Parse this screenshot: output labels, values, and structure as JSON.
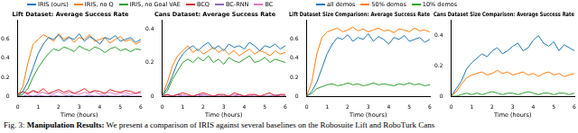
{
  "chart_data": [
    {
      "type": "line",
      "title": "Lift Dataset: Average Success Rate",
      "x_label": "Time (hours)",
      "legend": "top",
      "x": [
        0,
        0.25,
        0.5,
        0.75,
        1,
        1.25,
        1.5,
        1.75,
        2,
        2.25,
        2.5,
        2.75,
        3,
        3.25,
        3.5,
        3.75,
        4,
        4.25,
        4.5,
        4.75,
        5,
        5.25,
        5.5,
        5.75,
        6
      ],
      "xlim": [
        0,
        6
      ],
      "xticks": [
        0,
        1,
        2,
        3,
        4,
        5,
        6
      ],
      "ylim": [
        0,
        0.8
      ],
      "yticks": [
        0,
        0.2,
        0.4,
        0.6
      ],
      "grid": false,
      "series": [
        {
          "name": "IRIS (ours)",
          "color": "#1f77b4",
          "values": [
            0,
            0.05,
            0.15,
            0.3,
            0.45,
            0.55,
            0.62,
            0.6,
            0.65,
            0.58,
            0.62,
            0.6,
            0.66,
            0.58,
            0.63,
            0.6,
            0.55,
            0.62,
            0.6,
            0.64,
            0.58,
            0.6,
            0.62,
            0.57,
            0.6
          ]
        },
        {
          "name": "IRIS, no Q",
          "color": "#ff7f0e",
          "values": [
            0,
            0.1,
            0.35,
            0.55,
            0.6,
            0.65,
            0.62,
            0.58,
            0.66,
            0.6,
            0.63,
            0.57,
            0.62,
            0.6,
            0.65,
            0.58,
            0.6,
            0.62,
            0.56,
            0.6,
            0.63,
            0.58,
            0.6,
            0.55,
            0.58
          ]
        },
        {
          "name": "IRIS, no Goal VAE",
          "color": "#2ca02c",
          "values": [
            0,
            0.02,
            0.08,
            0.2,
            0.3,
            0.38,
            0.45,
            0.5,
            0.48,
            0.52,
            0.5,
            0.47,
            0.53,
            0.5,
            0.48,
            0.52,
            0.5,
            0.46,
            0.5,
            0.52,
            0.48,
            0.5,
            0.47,
            0.5,
            0.49
          ]
        },
        {
          "name": "BCQ",
          "color": "#d62728",
          "values": [
            0.02,
            0.05,
            0.03,
            0.06,
            0.04,
            0.08,
            0.03,
            0.05,
            0.07,
            0.04,
            0.06,
            0.03,
            0.05,
            0.08,
            0.04,
            0.06,
            0.05,
            0.03,
            0.07,
            0.05,
            0.04,
            0.06,
            0.05,
            0.03,
            0.05
          ]
        },
        {
          "name": "BC-RNN",
          "color": "#9467bd",
          "values": [
            0,
            0,
            0.01,
            0,
            0.01,
            0,
            0,
            0.01,
            0,
            0,
            0.01,
            0,
            0,
            0,
            0.01,
            0,
            0,
            0.01,
            0,
            0,
            0,
            0.01,
            0,
            0,
            0
          ]
        },
        {
          "name": "BC",
          "color": "#e377c2",
          "values": [
            0.03,
            0.04,
            0.02,
            0.05,
            0.03,
            0.04,
            0.02,
            0.03,
            0.05,
            0.02,
            0.04,
            0.03,
            0.02,
            0.04,
            0.03,
            0.05,
            0.02,
            0.03,
            0.04,
            0.02,
            0.03,
            0.04,
            0.02,
            0.03,
            0.03
          ]
        }
      ]
    },
    {
      "type": "line",
      "title": "Cans Dataset: Average Success Rate",
      "x_label": "Time (hours)",
      "x": [
        0,
        0.25,
        0.5,
        0.75,
        1,
        1.25,
        1.5,
        1.75,
        2,
        2.25,
        2.5,
        2.75,
        3,
        3.25,
        3.5,
        3.75,
        4,
        4.25,
        4.5,
        4.75,
        5,
        5.25,
        5.5,
        5.75,
        6
      ],
      "xlim": [
        0,
        6
      ],
      "xticks": [
        0,
        1,
        2,
        3,
        4,
        5,
        6
      ],
      "ylim": [
        0,
        0.45
      ],
      "yticks": [
        0,
        0.2,
        0.4
      ],
      "grid": false,
      "series": [
        {
          "name": "IRIS (ours)",
          "color": "#1f77b4",
          "values": [
            0,
            0.05,
            0.12,
            0.2,
            0.25,
            0.28,
            0.3,
            0.27,
            0.3,
            0.32,
            0.28,
            0.3,
            0.27,
            0.31,
            0.29,
            0.3,
            0.28,
            0.32,
            0.3,
            0.27,
            0.3,
            0.29,
            0.31,
            0.28,
            0.3
          ]
        },
        {
          "name": "IRIS, no Q",
          "color": "#ff7f0e",
          "values": [
            0,
            0.08,
            0.18,
            0.24,
            0.27,
            0.3,
            0.26,
            0.28,
            0.25,
            0.27,
            0.29,
            0.26,
            0.28,
            0.25,
            0.27,
            0.24,
            0.26,
            0.28,
            0.25,
            0.27,
            0.26,
            0.24,
            0.27,
            0.25,
            0.26
          ]
        },
        {
          "name": "IRIS, no Goal VAE",
          "color": "#2ca02c",
          "values": [
            0,
            0.03,
            0.1,
            0.15,
            0.2,
            0.22,
            0.2,
            0.23,
            0.21,
            0.24,
            0.2,
            0.22,
            0.19,
            0.23,
            0.21,
            0.2,
            0.22,
            0.24,
            0.2,
            0.21,
            0.23,
            0.2,
            0.22,
            0.21,
            0.2
          ]
        },
        {
          "name": "BCQ",
          "color": "#d62728",
          "values": [
            0,
            0.01,
            0,
            0.01,
            0.02,
            0.01,
            0,
            0.01,
            0.02,
            0.01,
            0,
            0.01,
            0.01,
            0,
            0.02,
            0.01,
            0,
            0.01,
            0.01,
            0,
            0.01,
            0.02,
            0,
            0.01,
            0.01
          ]
        },
        {
          "name": "BC-RNN",
          "color": "#9467bd",
          "values": [
            0,
            0,
            0,
            0.01,
            0,
            0,
            0,
            0,
            0.01,
            0,
            0,
            0,
            0,
            0,
            0,
            0.01,
            0,
            0,
            0,
            0,
            0,
            0,
            0.01,
            0,
            0
          ]
        },
        {
          "name": "BC",
          "color": "#e377c2",
          "values": [
            0,
            0.01,
            0,
            0,
            0.01,
            0,
            0,
            0.01,
            0,
            0,
            0,
            0.01,
            0,
            0,
            0.01,
            0,
            0,
            0,
            0.01,
            0,
            0,
            0,
            0,
            0.01,
            0
          ]
        }
      ]
    },
    {
      "type": "line",
      "title": "Lift Dataset Size Comparison: Average Success Rate",
      "x_label": "Time (hours)",
      "legend": "top",
      "x": [
        0,
        0.25,
        0.5,
        0.75,
        1,
        1.25,
        1.5,
        1.75,
        2,
        2.25,
        2.5,
        2.75,
        3,
        3.25,
        3.5,
        3.75,
        4,
        4.25,
        4.5,
        4.75,
        5,
        5.25,
        5.5,
        5.75,
        6
      ],
      "xlim": [
        0,
        6
      ],
      "xticks": [
        0,
        1,
        2,
        3,
        4,
        5,
        6
      ],
      "ylim": [
        0,
        0.8
      ],
      "yticks": [
        0,
        0.2,
        0.4,
        0.6
      ],
      "grid": false,
      "series": [
        {
          "name": "all demos",
          "color": "#1f77b4",
          "values": [
            0,
            0.05,
            0.15,
            0.3,
            0.45,
            0.55,
            0.62,
            0.6,
            0.65,
            0.58,
            0.62,
            0.6,
            0.66,
            0.58,
            0.63,
            0.6,
            0.55,
            0.62,
            0.6,
            0.64,
            0.58,
            0.6,
            0.62,
            0.57,
            0.6
          ]
        },
        {
          "name": "50% demos",
          "color": "#ff7f0e",
          "values": [
            0,
            0.15,
            0.45,
            0.62,
            0.68,
            0.7,
            0.72,
            0.68,
            0.7,
            0.73,
            0.69,
            0.71,
            0.68,
            0.7,
            0.72,
            0.69,
            0.7,
            0.67,
            0.71,
            0.7,
            0.68,
            0.72,
            0.69,
            0.7,
            0.68
          ]
        },
        {
          "name": "10% demos",
          "color": "#2ca02c",
          "values": [
            0,
            0.03,
            0.08,
            0.1,
            0.12,
            0.13,
            0.11,
            0.12,
            0.14,
            0.12,
            0.13,
            0.11,
            0.12,
            0.14,
            0.12,
            0.13,
            0.12,
            0.11,
            0.13,
            0.12,
            0.14,
            0.12,
            0.13,
            0.11,
            0.12
          ]
        }
      ]
    },
    {
      "type": "line",
      "title": "Cans Dataset Size Comparison: Average Success Rate",
      "x_label": "Time (hours)",
      "x": [
        0,
        0.25,
        0.5,
        0.75,
        1,
        1.25,
        1.5,
        1.75,
        2,
        2.25,
        2.5,
        2.75,
        3,
        3.25,
        3.5,
        3.75,
        4,
        4.25,
        4.5,
        4.75,
        5,
        5.25,
        5.5,
        5.75,
        6
      ],
      "xlim": [
        0,
        6
      ],
      "xticks": [
        0,
        1,
        2,
        3,
        4,
        5,
        6
      ],
      "ylim": [
        0,
        0.5
      ],
      "yticks": [
        0,
        0.2,
        0.4
      ],
      "grid": false,
      "series": [
        {
          "name": "all demos",
          "color": "#1f77b4",
          "values": [
            0,
            0.05,
            0.1,
            0.18,
            0.22,
            0.25,
            0.28,
            0.26,
            0.3,
            0.32,
            0.28,
            0.3,
            0.33,
            0.35,
            0.3,
            0.32,
            0.37,
            0.4,
            0.35,
            0.33,
            0.36,
            0.3,
            0.34,
            0.32,
            0.3
          ]
        },
        {
          "name": "50% demos",
          "color": "#ff7f0e",
          "values": [
            0,
            0.03,
            0.08,
            0.12,
            0.14,
            0.15,
            0.16,
            0.14,
            0.15,
            0.17,
            0.15,
            0.16,
            0.14,
            0.15,
            0.16,
            0.14,
            0.15,
            0.13,
            0.15,
            0.16,
            0.14,
            0.15,
            0.13,
            0.14,
            0.15
          ]
        },
        {
          "name": "10% demos",
          "color": "#2ca02c",
          "values": [
            0,
            0,
            0.01,
            0.02,
            0.01,
            0.02,
            0.01,
            0.02,
            0.03,
            0.02,
            0.01,
            0.02,
            0.02,
            0.01,
            0.02,
            0.03,
            0.02,
            0.01,
            0.02,
            0.02,
            0.01,
            0.02,
            0.02,
            0.01,
            0.02
          ]
        }
      ]
    }
  ],
  "caption": {
    "label": "Fig. 3:",
    "heading": "Manipulation Results:",
    "text": "We present a comparison of IRIS against several baselines on the Robosuite Lift and RoboTurk Cans"
  }
}
